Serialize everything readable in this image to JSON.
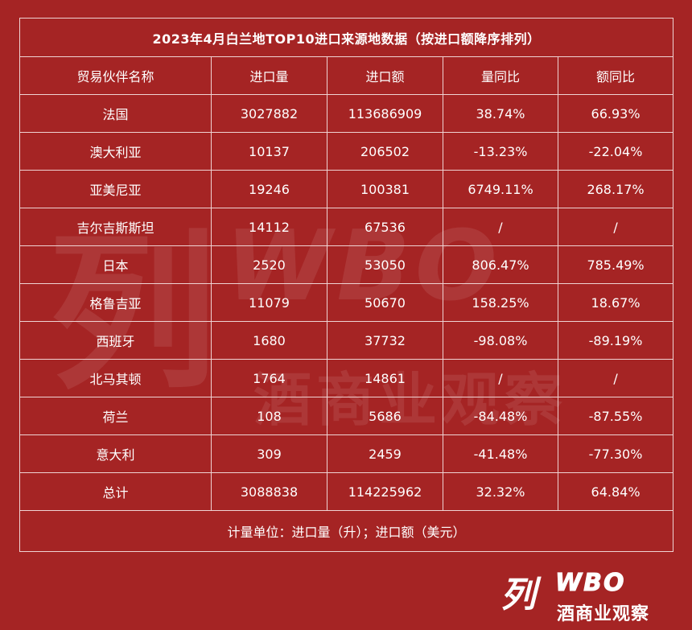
{
  "table": {
    "title": "2023年4月白兰地TOP10进口来源地数据（按进口额降序排列）",
    "headers": [
      "贸易伙伴名称",
      "进口量",
      "进口额",
      "量同比",
      "额同比"
    ],
    "rows": [
      [
        "法国",
        "3027882",
        "113686909",
        "38.74%",
        "66.93%"
      ],
      [
        "澳大利亚",
        "10137",
        "206502",
        "-13.23%",
        "-22.04%"
      ],
      [
        "亚美尼亚",
        "19246",
        "100381",
        "6749.11%",
        "268.17%"
      ],
      [
        "吉尔吉斯斯坦",
        "14112",
        "67536",
        "/",
        "/"
      ],
      [
        "日本",
        "2520",
        "53050",
        "806.47%",
        "785.49%"
      ],
      [
        "格鲁吉亚",
        "11079",
        "50670",
        "158.25%",
        "18.67%"
      ],
      [
        "西班牙",
        "1680",
        "37732",
        "-98.08%",
        "-89.19%"
      ],
      [
        "北马其顿",
        "1764",
        "14861",
        "/",
        "/"
      ],
      [
        "荷兰",
        "108",
        "5686",
        "-84.48%",
        "-87.55%"
      ],
      [
        "意大利",
        "309",
        "2459",
        "-41.48%",
        "-77.30%"
      ],
      [
        "总计",
        "3088838",
        "114225962",
        "32.32%",
        "64.84%"
      ]
    ],
    "note": "计量单位：进口量（升）；进口额（美元）"
  },
  "watermark": {
    "big_char": "列",
    "big_text": "WBO",
    "sub": "酒商业观察"
  },
  "brand": {
    "script": "列",
    "latin": "WBO",
    "sub": "酒商业观察"
  },
  "colors": {
    "background": "#A52424",
    "border": "#EFD3D3",
    "text": "#FFFFFF"
  }
}
